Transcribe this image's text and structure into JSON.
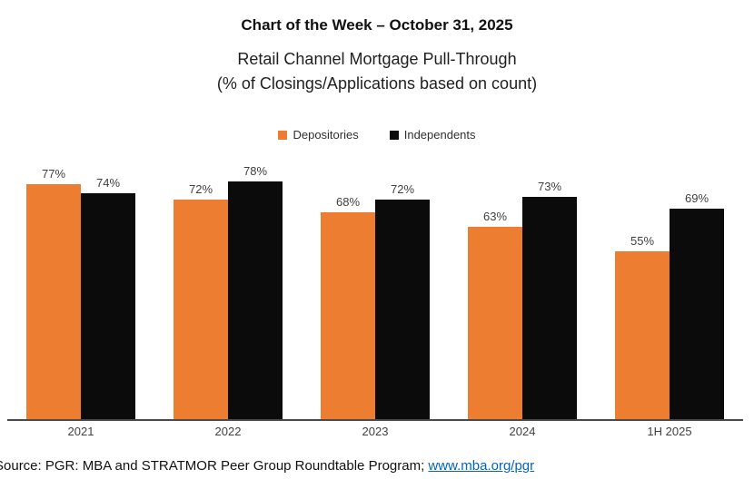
{
  "header": {
    "title": "Chart of the Week – October 31, 2025",
    "subtitle_line1": "Retail Channel Mortgage Pull-Through",
    "subtitle_line2": "(% of Closings/Applications based on count)"
  },
  "footer": {
    "source_prefix": "Source: PGR: MBA and STRATMOR Peer Group Roundtable Program; ",
    "source_link_text": "www.mba.org/pgr"
  },
  "colors": {
    "depositories_orange": "#ED7D31",
    "independents_black": "#0b0b0b",
    "link_blue": "#0563C1",
    "axis_line": "#4a4a4a",
    "label_gray": "#404040"
  },
  "chart_data": {
    "type": "bar",
    "title": "Retail Channel Mortgage Pull-Through",
    "subtitle": "(% of Closings/Applications based on count)",
    "categories": [
      "2021",
      "2022",
      "2023",
      "2024",
      "1H 2025"
    ],
    "series": [
      {
        "name": "Depositories",
        "color": "#ED7D31",
        "values": [
          77,
          72,
          68,
          63,
          55
        ]
      },
      {
        "name": "Independents",
        "color": "#0b0b0b",
        "values": [
          74,
          78,
          72,
          73,
          69
        ]
      }
    ],
    "value_suffix": "%",
    "xlabel": "",
    "ylabel": "",
    "ylim": [
      0,
      100
    ],
    "grid": false,
    "legend_position": "top",
    "data_labels": true
  }
}
